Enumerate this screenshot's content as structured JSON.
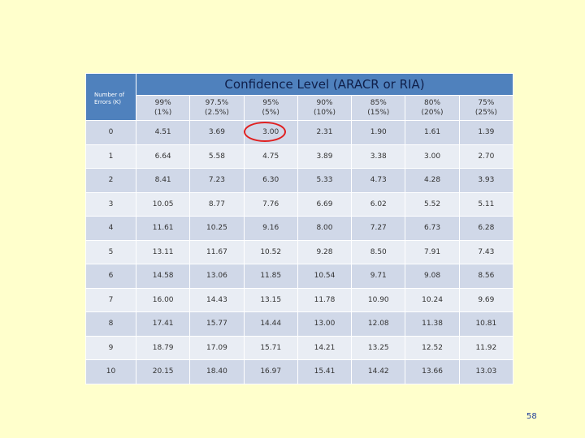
{
  "table": {
    "corner": "Number of Errors (K)",
    "title": "Confidence Level (ARACR or RIA)",
    "columns": [
      {
        "level": "99%",
        "risk": "(1%)"
      },
      {
        "level": "97.5%",
        "risk": "(2.5%)"
      },
      {
        "level": "95%",
        "risk": "(5%)"
      },
      {
        "level": "90%",
        "risk": "(10%)"
      },
      {
        "level": "85%",
        "risk": "(15%)"
      },
      {
        "level": "80%",
        "risk": "(20%)"
      },
      {
        "level": "75%",
        "risk": "(25%)"
      }
    ],
    "rows": [
      [
        "0",
        "4.51",
        "3.69",
        "3.00",
        "2.31",
        "1.90",
        "1.61",
        "1.39"
      ],
      [
        "1",
        "6.64",
        "5.58",
        "4.75",
        "3.89",
        "3.38",
        "3.00",
        "2.70"
      ],
      [
        "2",
        "8.41",
        "7.23",
        "6.30",
        "5.33",
        "4.73",
        "4.28",
        "3.93"
      ],
      [
        "3",
        "10.05",
        "8.77",
        "7.76",
        "6.69",
        "6.02",
        "5.52",
        "5.11"
      ],
      [
        "4",
        "11.61",
        "10.25",
        "9.16",
        "8.00",
        "7.27",
        "6.73",
        "6.28"
      ],
      [
        "5",
        "13.11",
        "11.67",
        "10.52",
        "9.28",
        "8.50",
        "7.91",
        "7.43"
      ],
      [
        "6",
        "14.58",
        "13.06",
        "11.85",
        "10.54",
        "9.71",
        "9.08",
        "8.56"
      ],
      [
        "7",
        "16.00",
        "14.43",
        "13.15",
        "11.78",
        "10.90",
        "10.24",
        "9.69"
      ],
      [
        "8",
        "17.41",
        "15.77",
        "14.44",
        "13.00",
        "12.08",
        "11.38",
        "10.81"
      ],
      [
        "9",
        "18.79",
        "17.09",
        "15.71",
        "14.21",
        "13.25",
        "12.52",
        "11.92"
      ],
      [
        "10",
        "20.15",
        "18.40",
        "16.97",
        "15.41",
        "14.42",
        "13.66",
        "13.03"
      ]
    ]
  },
  "page_number": "58"
}
